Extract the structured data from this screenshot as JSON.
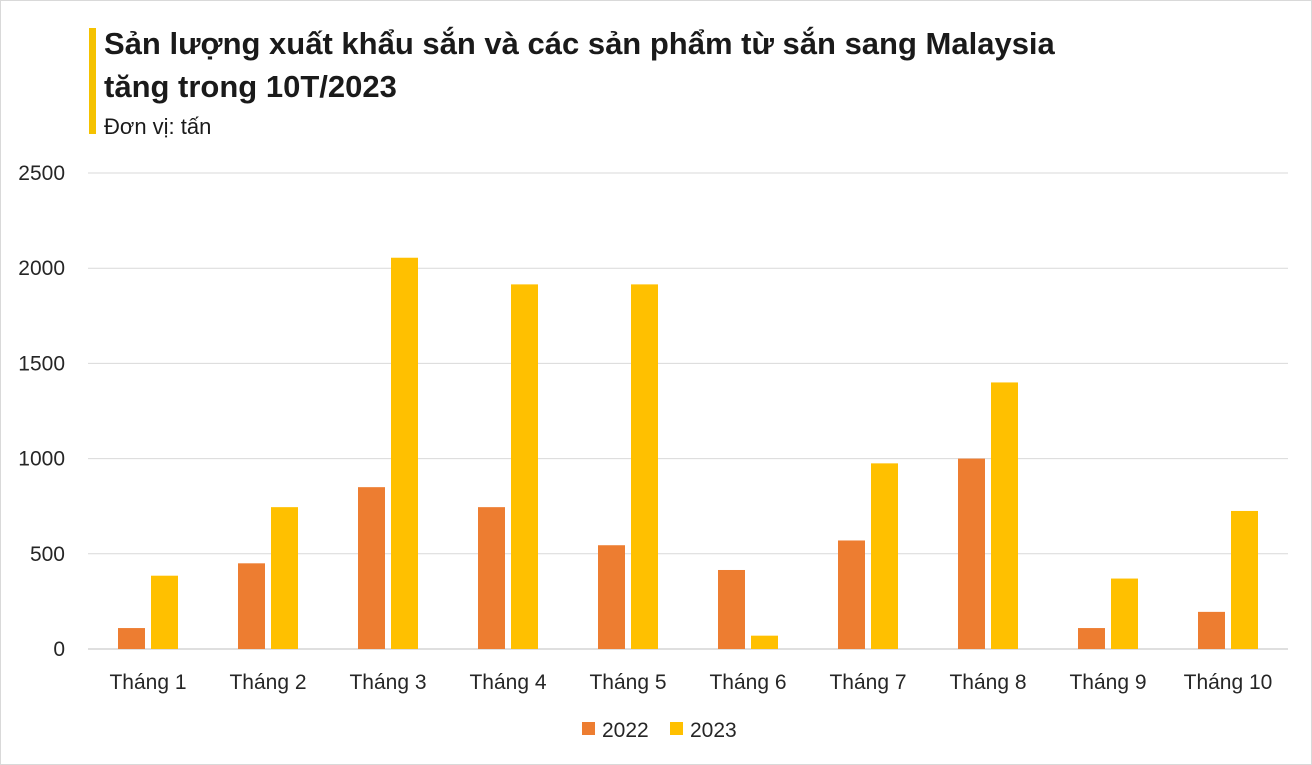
{
  "title_line1": "Sản lượng xuất khẩu sắn và các sản phẩm từ sắn sang Malaysia",
  "title_line2": "tăng trong 10T/2023",
  "subtitle": "Đơn vị: tấn",
  "colors": {
    "2022": "#ed7d31",
    "2023": "#ffc000",
    "accent": "#f5c200"
  },
  "chart_data": {
    "type": "bar",
    "title": "Sản lượng xuất khẩu sắn và các sản phẩm từ sắn sang Malaysia tăng trong 10T/2023",
    "subtitle": "Đơn vị: tấn",
    "categories": [
      "Tháng 1",
      "Tháng 2",
      "Tháng 3",
      "Tháng 4",
      "Tháng 5",
      "Tháng 6",
      "Tháng 7",
      "Tháng 8",
      "Tháng 9",
      "Tháng 10"
    ],
    "series": [
      {
        "name": "2022",
        "values": [
          110,
          450,
          850,
          745,
          545,
          415,
          570,
          1000,
          110,
          195
        ]
      },
      {
        "name": "2023",
        "values": [
          385,
          745,
          2055,
          1915,
          1915,
          70,
          975,
          1400,
          370,
          725
        ]
      }
    ],
    "yticks": [
      "0",
      "500",
      "1000",
      "1500",
      "2000",
      "2500"
    ],
    "ylim": [
      0,
      2500
    ],
    "grid": true,
    "legend": "bottom"
  }
}
